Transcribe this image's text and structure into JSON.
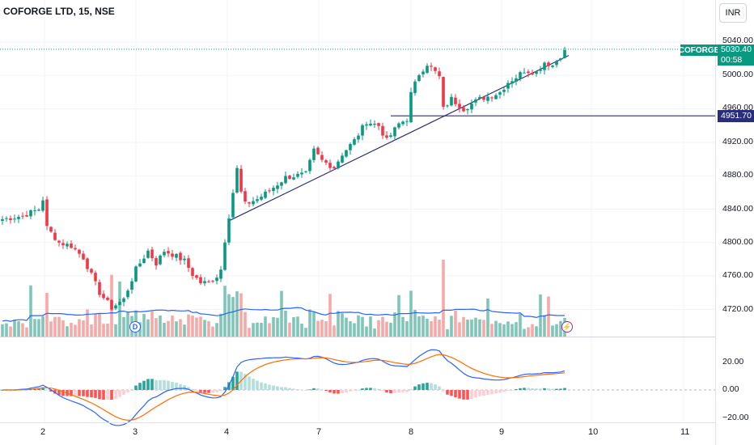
{
  "header": {
    "title": "COFORGE LTD, 15, NSE",
    "currency": "INR"
  },
  "price_axis": {
    "ticks": [
      "5040.00",
      "5000.00",
      "4960.00",
      "4920.00",
      "4880.00",
      "4840.00",
      "4800.00",
      "4760.00",
      "4720.00"
    ]
  },
  "indicator_axis": {
    "ticks": [
      "20.00",
      "0.00",
      "−20.00"
    ]
  },
  "time_axis": {
    "ticks": [
      "2",
      "3",
      "4",
      "7",
      "8",
      "9",
      "10",
      "11"
    ]
  },
  "last_price": {
    "symbol": "COFORGE",
    "price": "5030.40",
    "countdown": "00:58"
  },
  "level_line": {
    "price": "4951.70"
  },
  "badges": {
    "dividend": "D",
    "earnings": "⚡"
  },
  "colors": {
    "up": "#089981",
    "down": "#f23645",
    "vol_up": "#7fc6b8",
    "vol_down": "#f7a9a7",
    "ma": "#2962ff",
    "macd": "#2962ff",
    "signal": "#ff6d00",
    "level": "#2a2e7a"
  },
  "chart_data": {
    "type": "candlestick",
    "title": "COFORGE LTD, 15, NSE",
    "ylim": [
      4705,
      5048
    ],
    "x_categories": [
      "2",
      "3",
      "4",
      "7",
      "8",
      "9",
      "10",
      "11"
    ],
    "anchors": [
      {
        "x": 0,
        "y": 4828
      },
      {
        "x": 5,
        "y": 4832
      },
      {
        "x": 9,
        "y": 4840
      },
      {
        "x": 10,
        "y": 4852
      },
      {
        "x": 11,
        "y": 4818
      },
      {
        "x": 14,
        "y": 4800
      },
      {
        "x": 17,
        "y": 4796
      },
      {
        "x": 20,
        "y": 4782
      },
      {
        "x": 24,
        "y": 4740
      },
      {
        "x": 27,
        "y": 4722
      },
      {
        "x": 30,
        "y": 4732
      },
      {
        "x": 33,
        "y": 4768
      },
      {
        "x": 36,
        "y": 4790
      },
      {
        "x": 38,
        "y": 4775
      },
      {
        "x": 40,
        "y": 4790
      },
      {
        "x": 42,
        "y": 4786
      },
      {
        "x": 45,
        "y": 4778
      },
      {
        "x": 47,
        "y": 4762
      },
      {
        "x": 49,
        "y": 4752
      },
      {
        "x": 51,
        "y": 4752
      },
      {
        "x": 53,
        "y": 4760
      },
      {
        "x": 54,
        "y": 4768
      },
      {
        "x": 55,
        "y": 4803
      },
      {
        "x": 56,
        "y": 4832
      },
      {
        "x": 58,
        "y": 4888
      },
      {
        "x": 59,
        "y": 4860
      },
      {
        "x": 60,
        "y": 4846
      },
      {
        "x": 63,
        "y": 4852
      },
      {
        "x": 66,
        "y": 4862
      },
      {
        "x": 70,
        "y": 4878
      },
      {
        "x": 75,
        "y": 4882
      },
      {
        "x": 77,
        "y": 4910
      },
      {
        "x": 79,
        "y": 4898
      },
      {
        "x": 82,
        "y": 4890
      },
      {
        "x": 84,
        "y": 4906
      },
      {
        "x": 87,
        "y": 4922
      },
      {
        "x": 90,
        "y": 4945
      },
      {
        "x": 93,
        "y": 4940
      },
      {
        "x": 95,
        "y": 4922
      },
      {
        "x": 98,
        "y": 4942
      },
      {
        "x": 100,
        "y": 4948
      },
      {
        "x": 101,
        "y": 4978
      },
      {
        "x": 103,
        "y": 5002
      },
      {
        "x": 105,
        "y": 5014
      },
      {
        "x": 107,
        "y": 5004
      },
      {
        "x": 108,
        "y": 4998
      },
      {
        "x": 109,
        "y": 4960
      },
      {
        "x": 111,
        "y": 4972
      },
      {
        "x": 114,
        "y": 4960
      },
      {
        "x": 118,
        "y": 4972
      },
      {
        "x": 121,
        "y": 4976
      },
      {
        "x": 123,
        "y": 4980
      },
      {
        "x": 125,
        "y": 4992
      },
      {
        "x": 127,
        "y": 4998
      },
      {
        "x": 129,
        "y": 5006
      },
      {
        "x": 132,
        "y": 5004
      },
      {
        "x": 134,
        "y": 5016
      },
      {
        "x": 136,
        "y": 5012
      },
      {
        "x": 138,
        "y": 5024
      },
      {
        "x": 139,
        "y": 5030.4
      }
    ],
    "trendline": {
      "from": {
        "x": 56,
        "y": 4826
      },
      "to": {
        "x": 140,
        "y": 5024
      }
    },
    "horizontal_level": 4951.7,
    "macd_lim": [
      -24,
      28
    ],
    "macd_ticks": [
      20,
      0,
      -20
    ]
  }
}
